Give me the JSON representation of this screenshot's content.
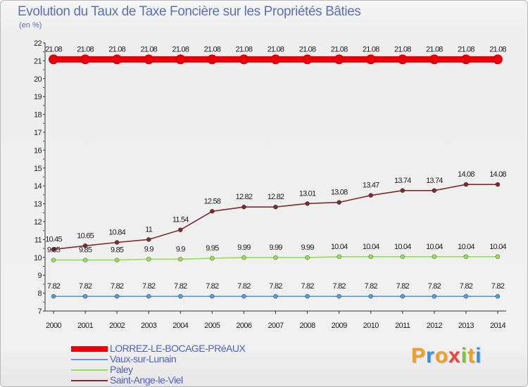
{
  "chart_data": {
    "type": "line",
    "title": "Evolution du Taux de Taxe Foncière sur les Propriétés Bâties",
    "ylabel": "(en %)",
    "xlabel": "",
    "ylim": [
      7,
      22
    ],
    "yticks": [
      "7",
      "8",
      "9",
      "10",
      "11",
      "12",
      "13",
      "14",
      "15",
      "16",
      "17",
      "18",
      "19",
      "20",
      "21",
      "22"
    ],
    "categories": [
      "2000",
      "2001",
      "2002",
      "2003",
      "2004",
      "2005",
      "2006",
      "2007",
      "2008",
      "2009",
      "2010",
      "2011",
      "2012",
      "2013",
      "2014"
    ],
    "series": [
      {
        "name": "LORREZ-LE-BOCAGE-PRéAUX",
        "color": "#e8000b",
        "values": [
          21.08,
          21.08,
          21.08,
          21.08,
          21.08,
          21.08,
          21.08,
          21.08,
          21.08,
          21.08,
          21.08,
          21.08,
          21.08,
          21.08,
          21.08
        ],
        "labels": [
          "21.08",
          "21.08",
          "21.08",
          "21.08",
          "21.08",
          "21.08",
          "21.08",
          "21.08",
          "21.08",
          "21.08",
          "21.08",
          "21.08",
          "21.08",
          "21.08",
          "21.08"
        ]
      },
      {
        "name": "Vaux-sur-Lunain",
        "color": "#5b9bd5",
        "values": [
          7.82,
          7.82,
          7.82,
          7.82,
          7.82,
          7.82,
          7.82,
          7.82,
          7.82,
          7.82,
          7.82,
          7.82,
          7.82,
          7.82,
          7.82
        ],
        "labels": [
          "7.82",
          "7.82",
          "7.82",
          "7.82",
          "7.82",
          "7.82",
          "7.82",
          "7.82",
          "7.82",
          "7.82",
          "7.82",
          "7.82",
          "7.82",
          "7.82",
          "7.82"
        ]
      },
      {
        "name": "Paley",
        "color": "#99dd55",
        "values": [
          9.85,
          9.85,
          9.85,
          9.9,
          9.9,
          9.95,
          9.99,
          9.99,
          9.99,
          10.04,
          10.04,
          10.04,
          10.04,
          10.04,
          10.04
        ],
        "labels": [
          "9.85",
          "9.85",
          "9.85",
          "9.9",
          "9.9",
          "9.95",
          "9.99",
          "9.99",
          "9.99",
          "10.04",
          "10.04",
          "10.04",
          "10.04",
          "10.04",
          "10.04"
        ]
      },
      {
        "name": "Saint-Ange-le-Viel",
        "color": "#7a2c30",
        "values": [
          10.45,
          10.65,
          10.84,
          11,
          11.54,
          12.58,
          12.82,
          12.82,
          13.01,
          13.08,
          13.47,
          13.74,
          13.74,
          14.08,
          14.08
        ],
        "labels": [
          "10.45",
          "10.65",
          "10.84",
          "11",
          "11.54",
          "12.58",
          "12.82",
          "12.82",
          "13.01",
          "13.08",
          "13.47",
          "13.74",
          "13.74",
          "14.08",
          "14.08"
        ]
      }
    ],
    "grid": false,
    "legend": "bottom-left"
  },
  "logo": {
    "letters": [
      "P",
      "r",
      "o",
      "x",
      "i",
      "t",
      "i"
    ],
    "colors": [
      "#f0a020",
      "#3b8ed8",
      "#f0a020",
      "#e8463c",
      "#7bc043",
      "#f0a020",
      "#3b8ed8"
    ]
  }
}
